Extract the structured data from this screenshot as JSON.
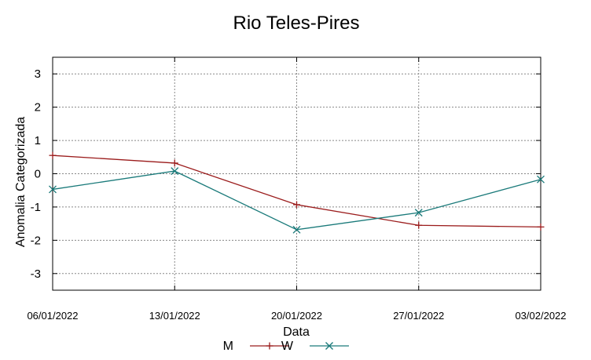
{
  "chart_data": {
    "type": "line",
    "title": "Rio Teles-Pires",
    "xlabel": "Data",
    "ylabel": "Anomalia Categorizada",
    "categories": [
      "06/01/2022",
      "13/01/2022",
      "20/01/2022",
      "27/01/2022",
      "03/02/2022"
    ],
    "yticks": [
      "3",
      "2",
      "1",
      "0",
      "-1",
      "-2",
      "-3"
    ],
    "ylim": [
      -3.5,
      3.5
    ],
    "grid": true,
    "legend_position": "bottom-center",
    "series": [
      {
        "name": "M",
        "color": "#9b1c1c",
        "marker": "plus",
        "values": [
          0.55,
          0.32,
          -0.93,
          -1.55,
          -1.6
        ]
      },
      {
        "name": "W",
        "color": "#1a7a7a",
        "marker": "x",
        "values": [
          -0.47,
          0.08,
          -1.68,
          -1.17,
          -0.17
        ]
      }
    ]
  }
}
